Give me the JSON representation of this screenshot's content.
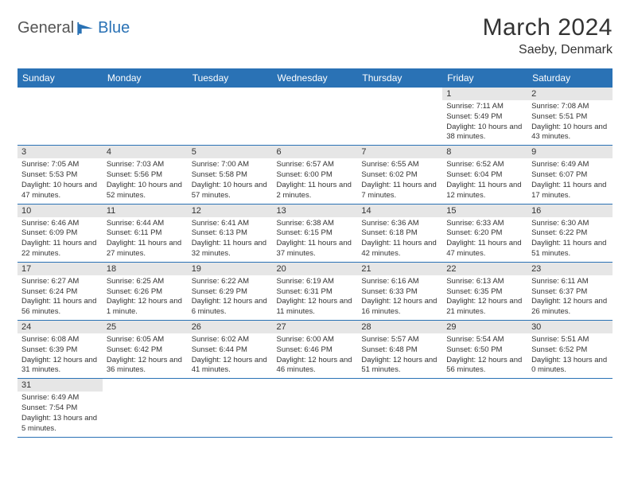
{
  "brand": {
    "part1": "General",
    "part2": "Blue"
  },
  "title": "March 2024",
  "location": "Saeby, Denmark",
  "colors": {
    "header_bg": "#2a72b5",
    "daynum_bg": "#e6e6e6",
    "border": "#2a72b5",
    "text": "#333333"
  },
  "day_headers": [
    "Sunday",
    "Monday",
    "Tuesday",
    "Wednesday",
    "Thursday",
    "Friday",
    "Saturday"
  ],
  "weeks": [
    [
      {
        "n": "",
        "sr": "",
        "ss": "",
        "dl": ""
      },
      {
        "n": "",
        "sr": "",
        "ss": "",
        "dl": ""
      },
      {
        "n": "",
        "sr": "",
        "ss": "",
        "dl": ""
      },
      {
        "n": "",
        "sr": "",
        "ss": "",
        "dl": ""
      },
      {
        "n": "",
        "sr": "",
        "ss": "",
        "dl": ""
      },
      {
        "n": "1",
        "sr": "Sunrise: 7:11 AM",
        "ss": "Sunset: 5:49 PM",
        "dl": "Daylight: 10 hours and 38 minutes."
      },
      {
        "n": "2",
        "sr": "Sunrise: 7:08 AM",
        "ss": "Sunset: 5:51 PM",
        "dl": "Daylight: 10 hours and 43 minutes."
      }
    ],
    [
      {
        "n": "3",
        "sr": "Sunrise: 7:05 AM",
        "ss": "Sunset: 5:53 PM",
        "dl": "Daylight: 10 hours and 47 minutes."
      },
      {
        "n": "4",
        "sr": "Sunrise: 7:03 AM",
        "ss": "Sunset: 5:56 PM",
        "dl": "Daylight: 10 hours and 52 minutes."
      },
      {
        "n": "5",
        "sr": "Sunrise: 7:00 AM",
        "ss": "Sunset: 5:58 PM",
        "dl": "Daylight: 10 hours and 57 minutes."
      },
      {
        "n": "6",
        "sr": "Sunrise: 6:57 AM",
        "ss": "Sunset: 6:00 PM",
        "dl": "Daylight: 11 hours and 2 minutes."
      },
      {
        "n": "7",
        "sr": "Sunrise: 6:55 AM",
        "ss": "Sunset: 6:02 PM",
        "dl": "Daylight: 11 hours and 7 minutes."
      },
      {
        "n": "8",
        "sr": "Sunrise: 6:52 AM",
        "ss": "Sunset: 6:04 PM",
        "dl": "Daylight: 11 hours and 12 minutes."
      },
      {
        "n": "9",
        "sr": "Sunrise: 6:49 AM",
        "ss": "Sunset: 6:07 PM",
        "dl": "Daylight: 11 hours and 17 minutes."
      }
    ],
    [
      {
        "n": "10",
        "sr": "Sunrise: 6:46 AM",
        "ss": "Sunset: 6:09 PM",
        "dl": "Daylight: 11 hours and 22 minutes."
      },
      {
        "n": "11",
        "sr": "Sunrise: 6:44 AM",
        "ss": "Sunset: 6:11 PM",
        "dl": "Daylight: 11 hours and 27 minutes."
      },
      {
        "n": "12",
        "sr": "Sunrise: 6:41 AM",
        "ss": "Sunset: 6:13 PM",
        "dl": "Daylight: 11 hours and 32 minutes."
      },
      {
        "n": "13",
        "sr": "Sunrise: 6:38 AM",
        "ss": "Sunset: 6:15 PM",
        "dl": "Daylight: 11 hours and 37 minutes."
      },
      {
        "n": "14",
        "sr": "Sunrise: 6:36 AM",
        "ss": "Sunset: 6:18 PM",
        "dl": "Daylight: 11 hours and 42 minutes."
      },
      {
        "n": "15",
        "sr": "Sunrise: 6:33 AM",
        "ss": "Sunset: 6:20 PM",
        "dl": "Daylight: 11 hours and 47 minutes."
      },
      {
        "n": "16",
        "sr": "Sunrise: 6:30 AM",
        "ss": "Sunset: 6:22 PM",
        "dl": "Daylight: 11 hours and 51 minutes."
      }
    ],
    [
      {
        "n": "17",
        "sr": "Sunrise: 6:27 AM",
        "ss": "Sunset: 6:24 PM",
        "dl": "Daylight: 11 hours and 56 minutes."
      },
      {
        "n": "18",
        "sr": "Sunrise: 6:25 AM",
        "ss": "Sunset: 6:26 PM",
        "dl": "Daylight: 12 hours and 1 minute."
      },
      {
        "n": "19",
        "sr": "Sunrise: 6:22 AM",
        "ss": "Sunset: 6:29 PM",
        "dl": "Daylight: 12 hours and 6 minutes."
      },
      {
        "n": "20",
        "sr": "Sunrise: 6:19 AM",
        "ss": "Sunset: 6:31 PM",
        "dl": "Daylight: 12 hours and 11 minutes."
      },
      {
        "n": "21",
        "sr": "Sunrise: 6:16 AM",
        "ss": "Sunset: 6:33 PM",
        "dl": "Daylight: 12 hours and 16 minutes."
      },
      {
        "n": "22",
        "sr": "Sunrise: 6:13 AM",
        "ss": "Sunset: 6:35 PM",
        "dl": "Daylight: 12 hours and 21 minutes."
      },
      {
        "n": "23",
        "sr": "Sunrise: 6:11 AM",
        "ss": "Sunset: 6:37 PM",
        "dl": "Daylight: 12 hours and 26 minutes."
      }
    ],
    [
      {
        "n": "24",
        "sr": "Sunrise: 6:08 AM",
        "ss": "Sunset: 6:39 PM",
        "dl": "Daylight: 12 hours and 31 minutes."
      },
      {
        "n": "25",
        "sr": "Sunrise: 6:05 AM",
        "ss": "Sunset: 6:42 PM",
        "dl": "Daylight: 12 hours and 36 minutes."
      },
      {
        "n": "26",
        "sr": "Sunrise: 6:02 AM",
        "ss": "Sunset: 6:44 PM",
        "dl": "Daylight: 12 hours and 41 minutes."
      },
      {
        "n": "27",
        "sr": "Sunrise: 6:00 AM",
        "ss": "Sunset: 6:46 PM",
        "dl": "Daylight: 12 hours and 46 minutes."
      },
      {
        "n": "28",
        "sr": "Sunrise: 5:57 AM",
        "ss": "Sunset: 6:48 PM",
        "dl": "Daylight: 12 hours and 51 minutes."
      },
      {
        "n": "29",
        "sr": "Sunrise: 5:54 AM",
        "ss": "Sunset: 6:50 PM",
        "dl": "Daylight: 12 hours and 56 minutes."
      },
      {
        "n": "30",
        "sr": "Sunrise: 5:51 AM",
        "ss": "Sunset: 6:52 PM",
        "dl": "Daylight: 13 hours and 0 minutes."
      }
    ],
    [
      {
        "n": "31",
        "sr": "Sunrise: 6:49 AM",
        "ss": "Sunset: 7:54 PM",
        "dl": "Daylight: 13 hours and 5 minutes."
      },
      {
        "n": "",
        "sr": "",
        "ss": "",
        "dl": ""
      },
      {
        "n": "",
        "sr": "",
        "ss": "",
        "dl": ""
      },
      {
        "n": "",
        "sr": "",
        "ss": "",
        "dl": ""
      },
      {
        "n": "",
        "sr": "",
        "ss": "",
        "dl": ""
      },
      {
        "n": "",
        "sr": "",
        "ss": "",
        "dl": ""
      },
      {
        "n": "",
        "sr": "",
        "ss": "",
        "dl": ""
      }
    ]
  ]
}
